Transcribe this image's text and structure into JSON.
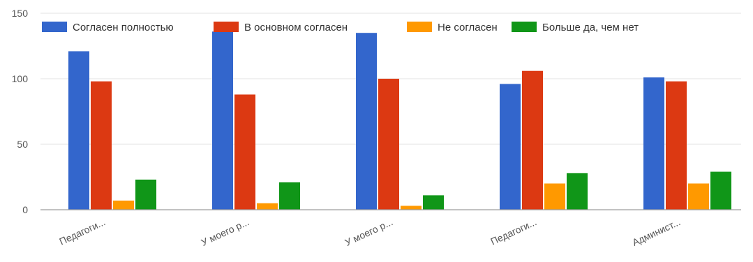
{
  "chart_data": {
    "type": "bar",
    "title": "",
    "xlabel": "",
    "ylabel": "",
    "ylim": [
      0,
      150
    ],
    "yticks": [
      0,
      50,
      100,
      150
    ],
    "grid": true,
    "legend_position": "top",
    "categories": [
      "Педагоги...",
      "У моего р...",
      "У моего р...",
      "Педагоги...",
      "Админист..."
    ],
    "series": [
      {
        "name": "Согласен полностью",
        "color": "#3366cc",
        "values": [
          121,
          136,
          135,
          96,
          101
        ]
      },
      {
        "name": "В основном согласен",
        "color": "#dc3912",
        "values": [
          98,
          88,
          100,
          106,
          98
        ]
      },
      {
        "name": "Не согласен",
        "color": "#ff9900",
        "values": [
          7,
          5,
          3,
          20,
          20
        ]
      },
      {
        "name": "Больше да, чем нет",
        "color": "#109618",
        "values": [
          23,
          21,
          11,
          28,
          29
        ]
      }
    ]
  }
}
